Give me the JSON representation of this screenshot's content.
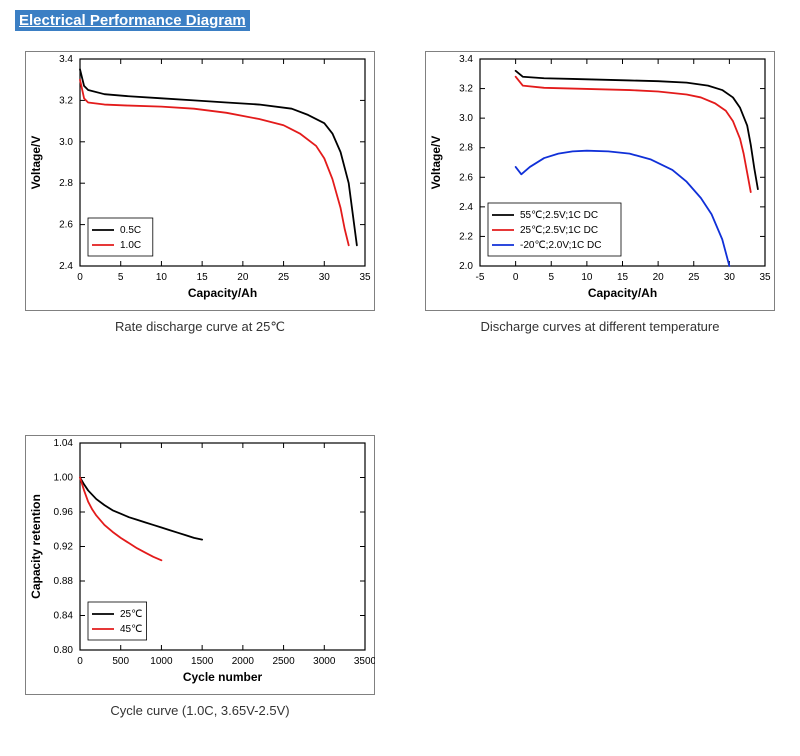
{
  "heading": "Electrical Performance Diagram",
  "heading_bg": "#3b7fc4",
  "heading_fg": "#ffffff",
  "background_color": "#ffffff",
  "charts": {
    "rate_discharge": {
      "type": "line",
      "caption": "Rate discharge curve at 25℃",
      "xlabel": "Capacity/Ah",
      "ylabel": "Voltage/V",
      "label_fontsize": 12,
      "tick_fontsize": 10,
      "axis_color": "#000000",
      "plot_bg": "#ffffff",
      "border_color": "#808080",
      "xlim": [
        0,
        35
      ],
      "xtick_step": 5,
      "ylim": [
        2.4,
        3.4
      ],
      "ytick_step": 0.2,
      "legend_pos": "lower-left-inside",
      "legend_box": true,
      "series": [
        {
          "label": "0.5C",
          "color": "#000000",
          "line_width": 1.8,
          "x": [
            0,
            0.5,
            1,
            3,
            6,
            10,
            14,
            18,
            22,
            26,
            28,
            30,
            31,
            32,
            33,
            33.5,
            34
          ],
          "y": [
            3.35,
            3.27,
            3.25,
            3.23,
            3.22,
            3.21,
            3.2,
            3.19,
            3.18,
            3.16,
            3.13,
            3.09,
            3.04,
            2.95,
            2.8,
            2.65,
            2.5
          ]
        },
        {
          "label": "1.0C",
          "color": "#e31b1b",
          "line_width": 1.8,
          "x": [
            0,
            0.5,
            1,
            3,
            6,
            10,
            14,
            18,
            22,
            25,
            27,
            29,
            30,
            31,
            32,
            32.5,
            33
          ],
          "y": [
            3.3,
            3.21,
            3.19,
            3.18,
            3.175,
            3.17,
            3.16,
            3.14,
            3.11,
            3.08,
            3.04,
            2.98,
            2.92,
            2.82,
            2.68,
            2.58,
            2.5
          ]
        }
      ]
    },
    "temperature_discharge": {
      "type": "line",
      "caption": "Discharge curves at different temperature",
      "xlabel": "Capacity/Ah",
      "ylabel": "Voltage/V",
      "label_fontsize": 12,
      "tick_fontsize": 10,
      "axis_color": "#000000",
      "plot_bg": "#ffffff",
      "border_color": "#808080",
      "xlim": [
        -5,
        35
      ],
      "xtick_step": 5,
      "ylim": [
        2.0,
        3.4
      ],
      "ytick_step": 0.2,
      "legend_pos": "lower-left-inside",
      "legend_box": true,
      "series": [
        {
          "label": "55℃;2.5V;1C DC",
          "color": "#000000",
          "line_width": 1.8,
          "x": [
            0,
            1,
            4,
            8,
            12,
            16,
            20,
            24,
            27,
            29,
            30.5,
            31.5,
            32.5,
            33,
            33.5,
            34
          ],
          "y": [
            3.32,
            3.28,
            3.27,
            3.265,
            3.26,
            3.255,
            3.25,
            3.24,
            3.22,
            3.19,
            3.14,
            3.07,
            2.95,
            2.82,
            2.66,
            2.52
          ]
        },
        {
          "label": "25℃;2.5V;1C DC",
          "color": "#e31b1b",
          "line_width": 1.8,
          "x": [
            0,
            1,
            4,
            8,
            12,
            16,
            20,
            24,
            26,
            28,
            29.5,
            30.5,
            31.5,
            32,
            32.5,
            33
          ],
          "y": [
            3.28,
            3.22,
            3.205,
            3.2,
            3.195,
            3.19,
            3.18,
            3.16,
            3.14,
            3.1,
            3.05,
            2.98,
            2.86,
            2.76,
            2.63,
            2.5
          ]
        },
        {
          "label": "-20℃;2.0V;1C DC",
          "color": "#1030d8",
          "line_width": 1.8,
          "x": [
            0,
            0.8,
            2,
            4,
            6,
            8,
            10,
            13,
            16,
            19,
            22,
            24,
            26,
            27.5,
            29,
            30
          ],
          "y": [
            2.67,
            2.62,
            2.67,
            2.73,
            2.76,
            2.775,
            2.78,
            2.775,
            2.76,
            2.72,
            2.65,
            2.57,
            2.46,
            2.35,
            2.18,
            2.0
          ]
        }
      ]
    },
    "cycle_curve": {
      "type": "line",
      "caption": "Cycle curve  (1.0C, 3.65V-2.5V)",
      "xlabel": "Cycle number",
      "ylabel": "Capacity retention",
      "label_fontsize": 12,
      "tick_fontsize": 10,
      "axis_color": "#000000",
      "plot_bg": "#ffffff",
      "border_color": "#808080",
      "xlim": [
        0,
        3500
      ],
      "xtick_step": 500,
      "ylim": [
        0.8,
        1.04
      ],
      "ytick_step": 0.04,
      "legend_pos": "lower-left-inside",
      "legend_box": true,
      "series": [
        {
          "label": "25℃",
          "color": "#000000",
          "line_width": 1.8,
          "x": [
            0,
            50,
            100,
            200,
            300,
            400,
            500,
            600,
            700,
            800,
            900,
            1000,
            1100,
            1200,
            1300,
            1400,
            1500
          ],
          "y": [
            1.0,
            0.992,
            0.985,
            0.975,
            0.968,
            0.962,
            0.958,
            0.954,
            0.951,
            0.948,
            0.945,
            0.942,
            0.939,
            0.936,
            0.933,
            0.93,
            0.928
          ]
        },
        {
          "label": "45℃",
          "color": "#e31b1b",
          "line_width": 1.8,
          "x": [
            0,
            50,
            100,
            150,
            200,
            300,
            400,
            500,
            600,
            700,
            800,
            900,
            1000
          ],
          "y": [
            1.0,
            0.985,
            0.972,
            0.963,
            0.956,
            0.945,
            0.937,
            0.93,
            0.924,
            0.918,
            0.913,
            0.908,
            0.904
          ]
        }
      ]
    }
  }
}
